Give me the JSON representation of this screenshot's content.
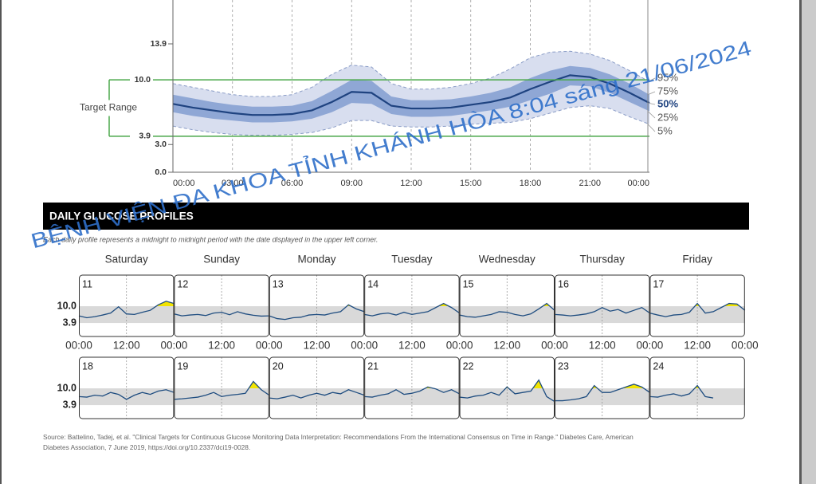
{
  "watermark": "BỆNH VIỆN ĐA KHOA TỈNH KHÁNH HÒA  8:04 sáng 21/06/2024",
  "source": [
    "Source: Battelino, Tadej, et al. \"Clinical Targets for Continuous Glucose Monitoring Data Interpretation: Recommendations From the International Consensus on Time in Range.\" Diabetes Care, American",
    "Diabetes Association, 7 June 2019, https://doi.org/10.2337/dci19-0028."
  ],
  "chart_data": [
    {
      "type": "area",
      "target_label": "Target Range",
      "target_range": [
        3.9,
        10.0
      ],
      "target_color": "#4aa84a",
      "band_colors": [
        "#d8deef",
        "#8fa7d5"
      ],
      "x": [
        0,
        1,
        2,
        3,
        4,
        5,
        6,
        7,
        8,
        9,
        10,
        11,
        12,
        13,
        14,
        15,
        16,
        17,
        18,
        19,
        20,
        21,
        22,
        23,
        24
      ],
      "xlim": [
        0,
        24
      ],
      "xticks": [
        {
          "value": 0,
          "label": "00:00"
        },
        {
          "value": 3,
          "label": "03:00"
        },
        {
          "value": 6,
          "label": "06:00"
        },
        {
          "value": 9,
          "label": "09:00"
        },
        {
          "value": 12,
          "label": "12:00"
        },
        {
          "value": 15,
          "label": "15:00"
        },
        {
          "value": 18,
          "label": "18:00"
        },
        {
          "value": 21,
          "label": "21:00"
        },
        {
          "value": 24,
          "label": "00:00"
        }
      ],
      "ylim": [
        0,
        18.65
      ],
      "yticks": [
        {
          "value": 0,
          "label": "0.0"
        },
        {
          "value": 3,
          "label": "3.0"
        },
        3.9,
        {
          "value": 10,
          "label": "10.0"
        },
        13.9
      ],
      "series": [
        {
          "name": "5%",
          "color": "#8a9cc6",
          "values": [
            5.0,
            4.6,
            4.3,
            4.1,
            4.0,
            4.0,
            4.1,
            4.3,
            4.8,
            5.6,
            5.6,
            5.0,
            4.9,
            4.9,
            5.0,
            5.2,
            5.3,
            5.4,
            5.8,
            6.4,
            7.0,
            7.2,
            6.9,
            6.0,
            5.2
          ]
        },
        {
          "name": "25%",
          "color": "#6f8cc4",
          "values": [
            6.5,
            6.1,
            5.8,
            5.6,
            5.4,
            5.4,
            5.5,
            5.8,
            6.5,
            7.5,
            7.4,
            6.3,
            6.0,
            6.0,
            6.1,
            6.4,
            6.7,
            7.1,
            7.8,
            8.5,
            9.4,
            9.3,
            8.6,
            7.6,
            6.6
          ]
        },
        {
          "name": "50%",
          "color": "#1f4380",
          "values": [
            7.4,
            7.0,
            6.7,
            6.4,
            6.2,
            6.2,
            6.3,
            6.7,
            7.6,
            8.7,
            8.6,
            7.2,
            6.9,
            6.9,
            7.0,
            7.3,
            7.6,
            8.1,
            9.0,
            9.8,
            10.5,
            10.3,
            9.6,
            8.6,
            7.5
          ]
        },
        {
          "name": "75%",
          "color": "#6f8cc4",
          "values": [
            8.4,
            8.0,
            7.6,
            7.3,
            7.1,
            7.1,
            7.2,
            7.7,
            8.8,
            10.0,
            9.9,
            8.2,
            7.8,
            7.8,
            7.9,
            8.2,
            8.6,
            9.2,
            10.2,
            11.0,
            11.5,
            11.3,
            10.6,
            9.6,
            8.4
          ]
        },
        {
          "name": "95%",
          "color": "#8a9cc6",
          "values": [
            9.6,
            9.2,
            8.8,
            8.4,
            8.2,
            8.2,
            8.4,
            9.2,
            10.6,
            11.6,
            11.4,
            9.6,
            9.0,
            9.0,
            9.2,
            9.6,
            10.2,
            11.2,
            12.4,
            13.0,
            13.1,
            12.8,
            12.1,
            11.0,
            9.8
          ]
        }
      ]
    },
    {
      "type": "line",
      "title": "DAILY GLUCOSE PROFILES",
      "subtitle": "Each daily profile represents a midnight to midnight period with the date displayed in the upper left corner.",
      "weekdays": [
        "Saturday",
        "Sunday",
        "Monday",
        "Tuesday",
        "Wednesday",
        "Thursday",
        "Friday"
      ],
      "color": "#1f4d80",
      "high_color": "#f2e400",
      "band_color": "#d9d9d9",
      "target_range": [
        3.9,
        10.0
      ],
      "x": [
        0,
        2,
        4,
        6,
        8,
        10,
        12,
        14,
        16,
        18,
        20,
        22,
        24
      ],
      "xlim": [
        0,
        24
      ],
      "xticks": [
        {
          "value": 0,
          "label": "00:00"
        },
        {
          "value": 12,
          "label": "12:00"
        },
        {
          "value": 24,
          "label": "00:00"
        }
      ],
      "ylim": [
        -1.0,
        21.3
      ],
      "yticks": [
        {
          "value": 10,
          "label": "10.0"
        },
        3.9
      ],
      "days": [
        {
          "label": "11",
          "values": [
            6.5,
            5.8,
            6.2,
            6.8,
            7.5,
            9.8,
            7.2,
            7.0,
            7.8,
            8.5,
            10.5,
            11.8,
            11.0
          ]
        },
        {
          "label": "12",
          "values": [
            7.2,
            6.5,
            6.8,
            7.0,
            6.6,
            7.5,
            7.8,
            6.9,
            8.0,
            7.2,
            6.7,
            6.4,
            6.5
          ]
        },
        {
          "label": "13",
          "values": [
            6.5,
            5.5,
            5.2,
            5.8,
            6.0,
            6.8,
            7.0,
            6.8,
            7.5,
            8.0,
            10.5,
            9.0,
            8.0
          ]
        },
        {
          "label": "14",
          "values": [
            7.0,
            6.5,
            7.2,
            7.5,
            6.8,
            7.8,
            7.0,
            7.5,
            8.0,
            9.5,
            11.0,
            9.5,
            7.5
          ]
        },
        {
          "label": "15",
          "values": [
            6.8,
            6.2,
            6.0,
            6.5,
            7.0,
            8.0,
            7.8,
            7.0,
            6.5,
            7.2,
            9.0,
            11.0,
            8.5
          ]
        },
        {
          "label": "16",
          "values": [
            7.0,
            6.8,
            6.5,
            6.8,
            7.2,
            8.0,
            9.5,
            8.2,
            8.8,
            7.5,
            8.5,
            9.5,
            7.5
          ]
        },
        {
          "label": "17",
          "values": [
            7.5,
            6.8,
            6.2,
            6.8,
            7.0,
            7.8,
            11.0,
            7.5,
            8.0,
            9.5,
            11.0,
            10.8,
            8.5
          ]
        },
        {
          "label": "18",
          "values": [
            7.0,
            6.8,
            7.5,
            7.2,
            8.5,
            7.8,
            6.0,
            7.5,
            8.5,
            7.8,
            9.0,
            9.5,
            8.5
          ]
        },
        {
          "label": "19",
          "values": [
            6.0,
            6.2,
            6.5,
            6.8,
            7.5,
            8.5,
            7.0,
            7.5,
            7.8,
            8.2,
            12.5,
            9.5,
            7.5
          ]
        },
        {
          "label": "20",
          "values": [
            6.5,
            6.2,
            6.8,
            7.5,
            6.5,
            7.5,
            8.2,
            7.5,
            8.5,
            8.0,
            9.5,
            8.5,
            7.5
          ]
        },
        {
          "label": "21",
          "values": [
            7.0,
            6.8,
            7.5,
            8.0,
            9.5,
            7.8,
            8.2,
            9.0,
            10.5,
            9.8,
            8.5,
            9.5,
            8.0
          ]
        },
        {
          "label": "22",
          "values": [
            6.8,
            6.5,
            7.2,
            7.5,
            8.5,
            7.5,
            10.5,
            8.0,
            8.5,
            9.0,
            13.0,
            7.0,
            5.2
          ]
        },
        {
          "label": "23",
          "values": [
            5.5,
            5.5,
            5.8,
            6.2,
            7.0,
            11.0,
            8.5,
            8.5,
            9.5,
            10.5,
            11.5,
            10.5,
            8.5
          ]
        },
        {
          "label": "24",
          "values": [
            7.0,
            6.8,
            7.5,
            8.0,
            7.2,
            8.0,
            11.0,
            7.0,
            6.5,
            null,
            null,
            null,
            null
          ]
        }
      ]
    }
  ]
}
